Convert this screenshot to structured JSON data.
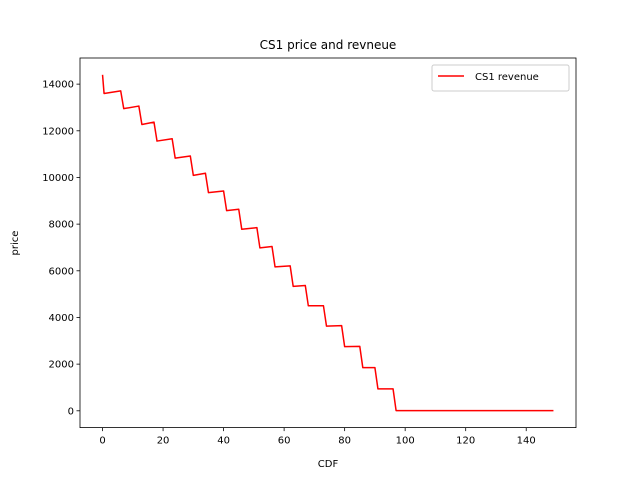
{
  "chart_data": {
    "type": "line",
    "title": "CS1 price and revneue",
    "xlabel": "CDF",
    "ylabel": "price",
    "xlim": [
      -7.45,
      156.45
    ],
    "ylim": [
      -720,
      15120
    ],
    "xticks": [
      0,
      20,
      40,
      60,
      80,
      100,
      120,
      140
    ],
    "yticks": [
      0,
      2000,
      4000,
      6000,
      8000,
      10000,
      12000,
      14000
    ],
    "legend_position": "upper right",
    "grid": false,
    "series": [
      {
        "name": "CS1 revenue",
        "color": "#ff0000",
        "points": [
          [
            0,
            14400
          ],
          [
            0.5,
            13600
          ],
          [
            6,
            13710
          ],
          [
            7,
            12950
          ],
          [
            12,
            13060
          ],
          [
            13,
            12270
          ],
          [
            17,
            12370
          ],
          [
            18,
            11560
          ],
          [
            23,
            11660
          ],
          [
            24,
            10830
          ],
          [
            29,
            10920
          ],
          [
            30,
            10090
          ],
          [
            34,
            10180
          ],
          [
            35,
            9350
          ],
          [
            40,
            9420
          ],
          [
            41,
            8580
          ],
          [
            45,
            8640
          ],
          [
            46,
            7780
          ],
          [
            51,
            7850
          ],
          [
            52,
            6980
          ],
          [
            56,
            7040
          ],
          [
            57,
            6170
          ],
          [
            62,
            6210
          ],
          [
            63,
            5330
          ],
          [
            67,
            5370
          ],
          [
            68,
            4500
          ],
          [
            73,
            4500
          ],
          [
            74,
            3630
          ],
          [
            79,
            3650
          ],
          [
            80,
            2750
          ],
          [
            85,
            2760
          ],
          [
            86,
            1850
          ],
          [
            90,
            1850
          ],
          [
            91,
            940
          ],
          [
            96,
            940
          ],
          [
            97,
            10
          ],
          [
            149,
            10
          ]
        ]
      }
    ]
  }
}
